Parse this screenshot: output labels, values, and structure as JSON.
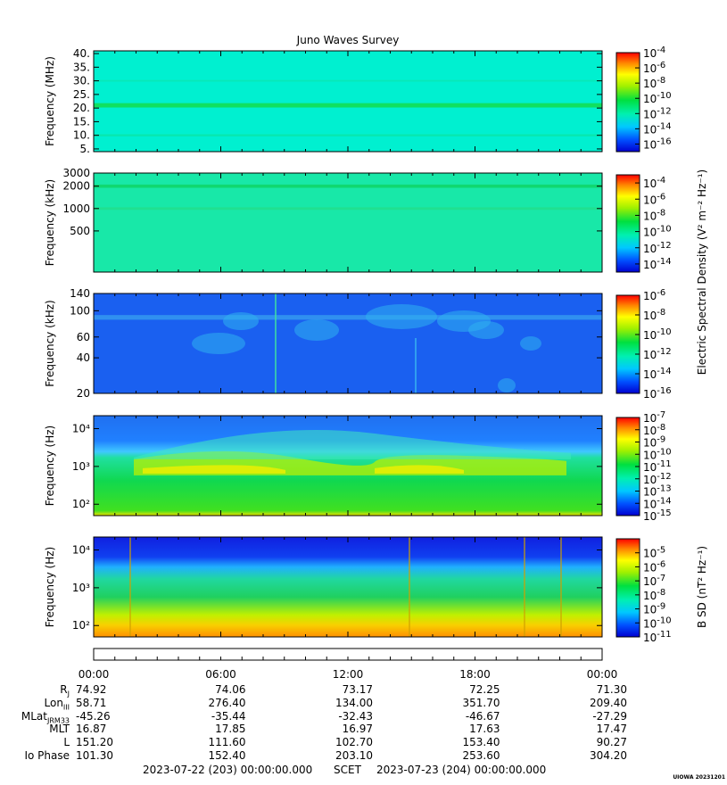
{
  "title": "Juno Waves Survey",
  "chart_data": [
    {
      "type": "heatmap",
      "name": "hfr-high",
      "ylabel": "Frequency (MHz)",
      "ylim": [
        4,
        41
      ],
      "yscale": "linear",
      "yticks": [
        5,
        10,
        15,
        20,
        25,
        30,
        35,
        40
      ],
      "ytick_labels": [
        "5.",
        "10.",
        "15.",
        "20.",
        "25.",
        "30.",
        "35.",
        "40."
      ],
      "colorbar": {
        "ticks": [
          "10-4",
          "10-6",
          "10-8",
          "10-10",
          "10-12",
          "10-14",
          "10-16"
        ],
        "min_exp": -17,
        "max_exp": -4
      },
      "base_color": "#00f0d0",
      "bands": [
        {
          "center": 21,
          "width": 1.6,
          "color": "#10e060"
        },
        {
          "center": 10,
          "width": 0.8,
          "color": "#08e8b0"
        },
        {
          "center": 30,
          "width": 0.6,
          "color": "#08e8b8"
        }
      ]
    },
    {
      "type": "heatmap",
      "name": "hfr-low",
      "ylabel": "Frequency (kHz)",
      "ylim": [
        140,
        3000
      ],
      "yscale": "log",
      "yticks": [
        500,
        1000,
        2000,
        3000
      ],
      "ytick_labels": [
        "500",
        "1000",
        "2000",
        "3000"
      ],
      "colorbar": {
        "ticks": [
          "10-4",
          "10-6",
          "10-8",
          "10-10",
          "10-12",
          "10-14"
        ],
        "min_exp": -15,
        "max_exp": -3
      },
      "base_color": "#18e8a8",
      "bands": [
        {
          "center": 2000,
          "width": 200,
          "color": "#10d870"
        },
        {
          "center": 1000,
          "width": 80,
          "color": "#20e090"
        }
      ]
    },
    {
      "type": "heatmap",
      "name": "lfr-high",
      "ylabel": "Frequency (kHz)",
      "ylim": [
        20,
        140
      ],
      "yscale": "log",
      "yticks": [
        20,
        40,
        60,
        100,
        140
      ],
      "ytick_labels": [
        "20",
        "40",
        "60",
        "100",
        "140"
      ],
      "colorbar": {
        "ticks": [
          "10-6",
          "10-8",
          "10-10",
          "10-12",
          "10-14",
          "10-16"
        ],
        "min_exp": -16,
        "max_exp": -6
      },
      "base_color": "#1a60f0",
      "bands": [
        {
          "center": 88,
          "width": 8,
          "color": "#3090f0"
        }
      ]
    },
    {
      "type": "heatmap",
      "name": "lfr-low",
      "ylabel": "Frequency (Hz)",
      "ylim": [
        50,
        22000
      ],
      "yscale": "log",
      "yticks": [
        100,
        1000,
        10000
      ],
      "ytick_labels": [
        "10²",
        "10³",
        "10⁴"
      ],
      "colorbar": {
        "ticks": [
          "10-7",
          "10-8",
          "10-9",
          "10-10",
          "10-11",
          "10-12",
          "10-13",
          "10-14",
          "10-15"
        ],
        "min_exp": -15,
        "max_exp": -7
      },
      "base_color": "#10d850",
      "bands": []
    },
    {
      "type": "heatmap",
      "name": "mag",
      "ylabel": "Frequency (Hz)",
      "ylim": [
        50,
        22000
      ],
      "yscale": "log",
      "yticks": [
        100,
        1000,
        10000
      ],
      "ytick_labels": [
        "10²",
        "10³",
        "10⁴"
      ],
      "colorbar": {
        "ticks": [
          "10-5",
          "10-6",
          "10-7",
          "10-8",
          "10-9",
          "10-10",
          "10-11"
        ],
        "min_exp": -11,
        "max_exp": -4
      },
      "base_color": "#20d060",
      "bands": []
    }
  ],
  "colorbar_label_e": "Electric Spectral Density (V² m⁻² Hz⁻¹)",
  "colorbar_label_b": "B SD (nT² Hz⁻¹)",
  "time_axis": {
    "ticks": [
      "00:00",
      "06:00",
      "12:00",
      "18:00",
      "00:00"
    ]
  },
  "ephemeris": [
    {
      "label": "R_J",
      "values": [
        "74.92",
        "74.06",
        "73.17",
        "72.25",
        "71.30"
      ]
    },
    {
      "label": "Lon_III",
      "values": [
        "58.71",
        "276.40",
        "134.00",
        "351.70",
        "209.40"
      ]
    },
    {
      "label": "MLat_JRM33",
      "values": [
        "-45.26",
        "-35.44",
        "-32.43",
        "-46.67",
        "-27.29"
      ]
    },
    {
      "label": "MLT",
      "values": [
        "16.87",
        "17.85",
        "16.97",
        "17.63",
        "17.47"
      ]
    },
    {
      "label": "L",
      "values": [
        "151.20",
        "111.60",
        "102.70",
        "153.40",
        "90.27"
      ]
    },
    {
      "label": "Io Phase",
      "values": [
        "101.30",
        "152.40",
        "203.10",
        "253.60",
        "304.20"
      ]
    }
  ],
  "ephem_labels": {
    "rj": "R",
    "rj_sub": "J",
    "lon": "Lon",
    "lon_sub": "III",
    "mlat": "MLat",
    "mlat_sub": "JRM33",
    "mlt": "MLT",
    "l": "L",
    "io": "Io Phase"
  },
  "footer": {
    "start": "2023-07-22 (203) 00:00:00.000",
    "scet": "SCET",
    "end": "2023-07-23 (204) 00:00:00.000"
  },
  "stamp": "UIOWA 20231201"
}
